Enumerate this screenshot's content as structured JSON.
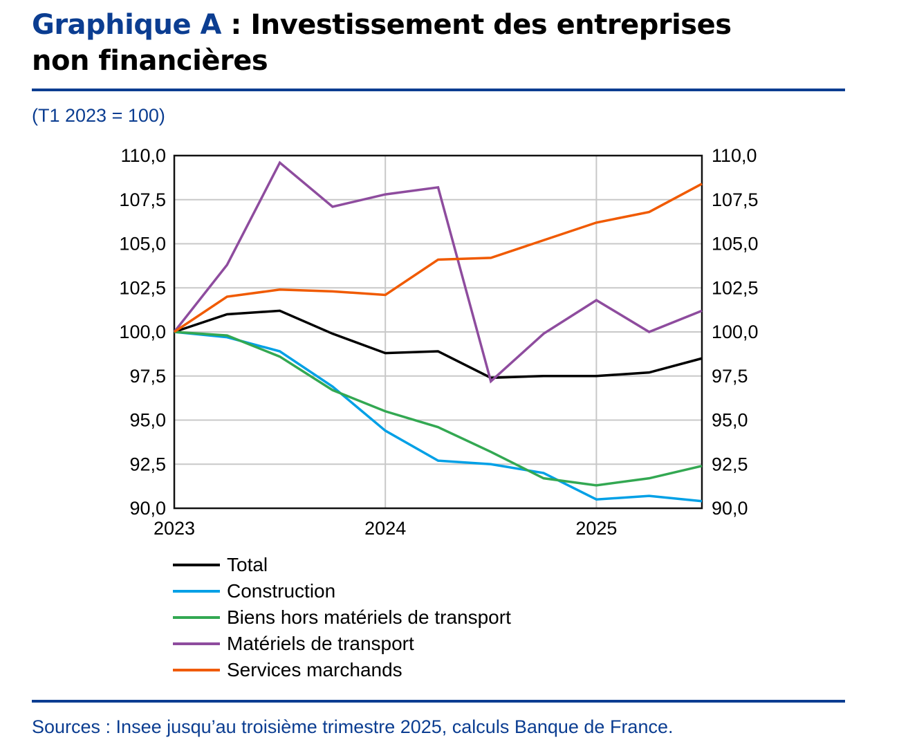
{
  "title": {
    "label": "Graphique A",
    "sep": " : ",
    "text_line1": "Investissement des entreprises",
    "text_line2": "non financières"
  },
  "unit": "(T1 2023 = 100)",
  "source": "Sources : Insee jusqu’au troisième trimestre 2025, calculs Banque de France.",
  "accent_color": "#0b3d91",
  "chart_data": {
    "type": "line",
    "x": [
      "T1 2023",
      "T2 2023",
      "T3 2023",
      "T4 2023",
      "T1 2024",
      "T2 2024",
      "T3 2024",
      "T4 2024",
      "T1 2025",
      "T2 2025",
      "T3 2025"
    ],
    "xticks": [
      "2023",
      "2024",
      "2025"
    ],
    "yticks": [
      "90,0",
      "92,5",
      "95,0",
      "97,5",
      "100,0",
      "102,5",
      "105,0",
      "107,5",
      "110,0"
    ],
    "ylim": [
      90,
      110
    ],
    "grid": true,
    "legend_placement": "bottom",
    "series": [
      {
        "name": "Total",
        "color": "#000000",
        "values": [
          100,
          101.0,
          101.2,
          99.9,
          98.8,
          98.9,
          97.4,
          97.5,
          97.5,
          97.7,
          98.5
        ]
      },
      {
        "name": "Construction",
        "color": "#00a0e6",
        "values": [
          100,
          99.7,
          98.9,
          96.9,
          94.4,
          92.7,
          92.5,
          92.0,
          90.5,
          90.7,
          90.4
        ]
      },
      {
        "name": "Biens hors matériels de transport",
        "color": "#33a852",
        "values": [
          100,
          99.8,
          98.6,
          96.7,
          95.5,
          94.6,
          93.2,
          91.7,
          91.3,
          91.7,
          92.4
        ]
      },
      {
        "name": "Matériels de transport",
        "color": "#8e4c9e",
        "values": [
          100,
          103.8,
          109.6,
          107.1,
          107.8,
          108.2,
          97.2,
          99.9,
          101.8,
          100.0,
          101.2
        ]
      },
      {
        "name": "Services marchands",
        "color": "#f05a00",
        "values": [
          100,
          102.0,
          102.4,
          102.3,
          102.1,
          104.1,
          104.2,
          105.2,
          106.2,
          106.8,
          108.4
        ]
      }
    ]
  }
}
